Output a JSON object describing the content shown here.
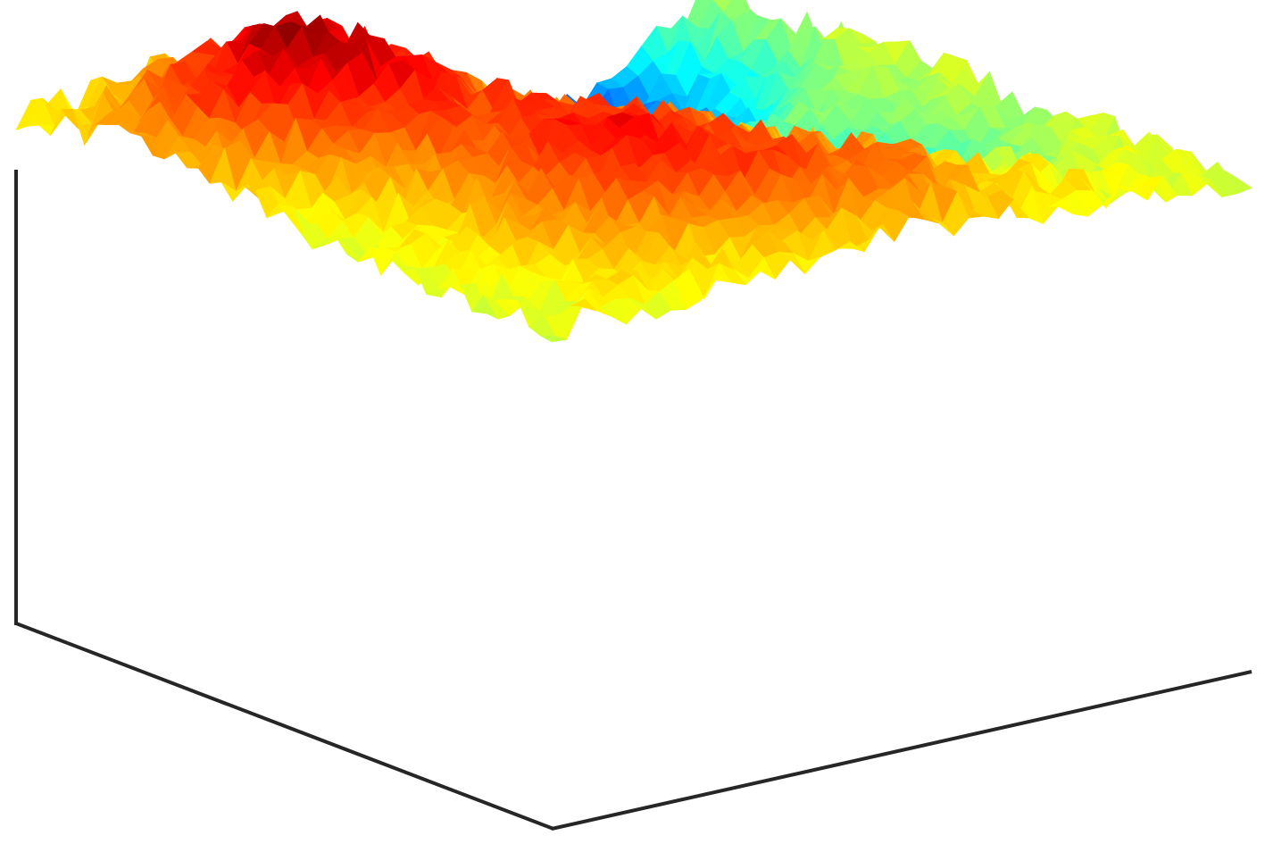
{
  "chart_data": {
    "type": "surface3d",
    "title": "",
    "xlabel": "",
    "ylabel": "",
    "zlabel": "",
    "colormap": "jet",
    "colormap_stops": [
      "#00008f",
      "#0000ff",
      "#00ffff",
      "#ffff00",
      "#ff0000",
      "#800000"
    ],
    "grid": false,
    "legend": "none",
    "ticks_visible": false,
    "grid_size": [
      48,
      48
    ],
    "xlim": [
      0,
      47
    ],
    "ylim": [
      0,
      47
    ],
    "zlim": [
      -1,
      1
    ],
    "surface_model": {
      "basins": [
        {
          "x": 0.12,
          "y": 0.72,
          "depth": 1.15,
          "spread": 0.045
        },
        {
          "x": 0.3,
          "y": 0.55,
          "depth": 0.45,
          "spread": 0.03
        },
        {
          "x": 0.6,
          "y": 0.8,
          "depth": 0.35,
          "spread": 0.02
        }
      ],
      "ridges": [
        {
          "x": 0.25,
          "y": 0.25,
          "height": 0.85,
          "spread": 0.05
        },
        {
          "x": 0.7,
          "y": 0.3,
          "height": 0.55,
          "spread": 0.04
        },
        {
          "x": 0.82,
          "y": 0.55,
          "height": 0.5,
          "spread": 0.05
        },
        {
          "x": 0.5,
          "y": 0.45,
          "height": 0.35,
          "spread": 0.03
        }
      ],
      "noise_amplitude": 0.28,
      "seed": 7
    }
  }
}
